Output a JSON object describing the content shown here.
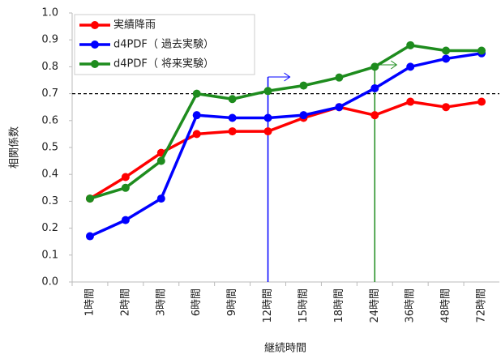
{
  "chart_data": {
    "type": "line",
    "categories": [
      "1時間",
      "2時間",
      "3時間",
      "6時間",
      "9時間",
      "12時間",
      "15時間",
      "18時間",
      "24時間",
      "36時間",
      "48時間",
      "72時間"
    ],
    "series": [
      {
        "name": "実績降雨",
        "color": "#ff0000",
        "values": [
          0.31,
          0.39,
          0.48,
          0.55,
          0.56,
          0.56,
          0.61,
          0.65,
          0.62,
          0.67,
          0.65,
          0.67
        ]
      },
      {
        "name": "d4PDF（ 過去実験）",
        "color": "#0000ff",
        "values": [
          0.17,
          0.23,
          0.31,
          0.62,
          0.61,
          0.61,
          0.62,
          0.65,
          0.72,
          0.8,
          0.83,
          0.85
        ]
      },
      {
        "name": "d4PDF（ 将来実験）",
        "color": "#1e8c1e",
        "values": [
          0.31,
          0.35,
          0.45,
          0.7,
          0.68,
          0.71,
          0.73,
          0.76,
          0.8,
          0.88,
          0.86,
          0.86
        ]
      }
    ],
    "ylim": [
      0,
      1
    ],
    "yticks": [
      {
        "value": 0,
        "label": "0.0"
      },
      0.1,
      0.2,
      0.3,
      0.4,
      0.5,
      0.6,
      0.7,
      0.8,
      0.9,
      {
        "value": 1,
        "label": "1.0"
      }
    ],
    "reference_line": 0.7,
    "xlabel": "継続時間",
    "ylabel": "相関係数",
    "legend": "upper left"
  }
}
